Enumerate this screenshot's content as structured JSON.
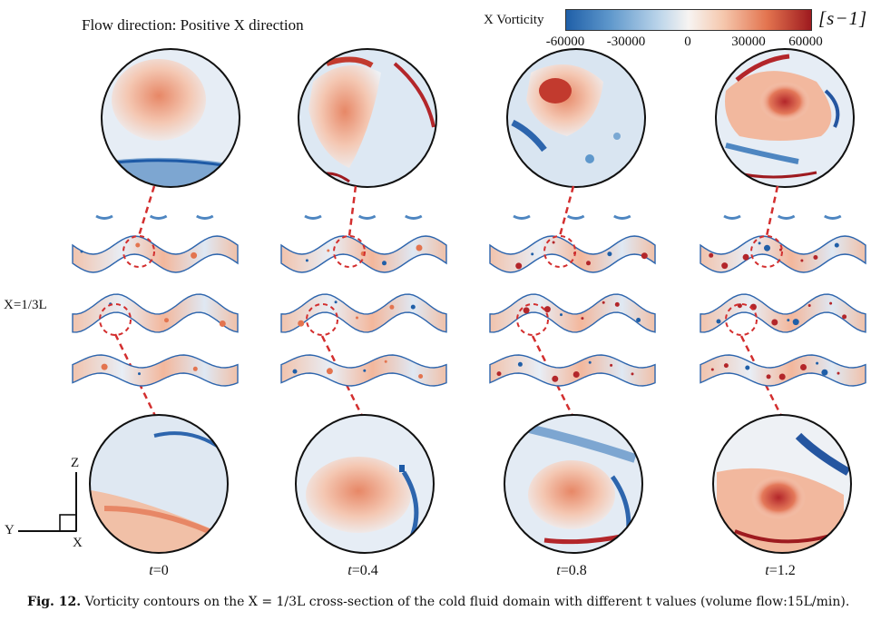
{
  "header": {
    "flow_direction": "Flow direction: Positive X direction"
  },
  "colorbar": {
    "label": "X Vorticity",
    "unit": "[s−1]",
    "ticks": [
      "-60000",
      "-30000",
      "0",
      "30000",
      "60000"
    ],
    "colors": [
      "#1f5fa8",
      "#bcd5ea",
      "#f7f4f2",
      "#e3744f",
      "#9e1a1f"
    ]
  },
  "section_label": "X=1/3L",
  "axes": {
    "z": "Z",
    "y": "Y",
    "x": "X"
  },
  "panels": [
    {
      "t_prefix": "t",
      "t_value": "=0"
    },
    {
      "t_prefix": "t",
      "t_value": "=0.4"
    },
    {
      "t_prefix": "t",
      "t_value": "=0.8"
    },
    {
      "t_prefix": "t",
      "t_value": "=1.2"
    }
  ],
  "caption": {
    "label": "Fig. 12.",
    "text": "Vorticity contours on the X = 1/3L cross-section of the cold fluid domain with different t values (volume flow:15L/min)."
  }
}
